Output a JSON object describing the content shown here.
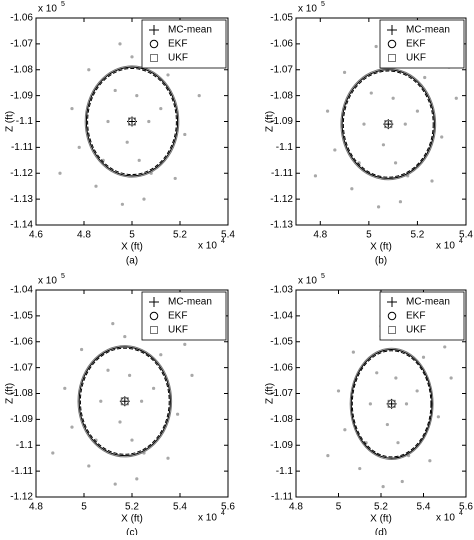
{
  "chart_data": [
    {
      "type": "scatter",
      "caption": "(a)",
      "x_label": "X (ft)",
      "y_label": "Z (ft)",
      "x_multiplier": {
        "base": "x 10",
        "power": "4"
      },
      "y_multiplier": {
        "base": "x 10",
        "power": "5"
      },
      "xlim": [
        4.6,
        5.4
      ],
      "xticks": [
        4.6,
        4.8,
        5,
        5.2,
        5.4
      ],
      "ylim": [
        -1.14,
        -1.06
      ],
      "yticks": [
        -1.06,
        -1.07,
        -1.08,
        -1.09,
        -1.1,
        -1.11,
        -1.12,
        -1.13,
        -1.14
      ],
      "legend": "upper right",
      "points": {
        "color": "#a8a8a8",
        "x": [
          4.75,
          4.82,
          4.88,
          4.95,
          5.02,
          5.08,
          5.15,
          5.22,
          5.28,
          4.9,
          5.05,
          4.98,
          5.12,
          4.85,
          5.18,
          5.0,
          4.93,
          5.1,
          4.78,
          5.25,
          5.03,
          4.7,
          5.07,
          4.96,
          5.2
        ],
        "y": [
          -1.095,
          -1.08,
          -1.115,
          -1.07,
          -1.09,
          -1.12,
          -1.082,
          -1.105,
          -1.09,
          -1.1,
          -1.13,
          -1.108,
          -1.095,
          -1.125,
          -1.122,
          -1.075,
          -1.088,
          -1.072,
          -1.11,
          -1.078,
          -1.115,
          -1.12,
          -1.1,
          -1.132,
          -1.07
        ]
      },
      "series": [
        {
          "name": "MC-mean",
          "marker": "plus",
          "color": "#000000",
          "line_style": "solid",
          "center": [
            5.0,
            -1.1
          ],
          "radii": [
            0.19,
            0.021
          ]
        },
        {
          "name": "EKF",
          "marker": "circle",
          "color": "#000000",
          "line_style": "dashed",
          "center": [
            5.0,
            -1.1
          ],
          "radii": [
            0.185,
            0.0205
          ]
        },
        {
          "name": "UKF",
          "marker": "square",
          "color": "#777777",
          "line_style": "solid",
          "center": [
            5.0,
            -1.1
          ],
          "radii": [
            0.195,
            0.0215
          ]
        }
      ]
    },
    {
      "type": "scatter",
      "caption": "(b)",
      "x_label": "X (ft)",
      "y_label": "Z (ft)",
      "x_multiplier": {
        "base": "x 10",
        "power": "4"
      },
      "y_multiplier": {
        "base": "x 10",
        "power": "5"
      },
      "xlim": [
        4.7,
        5.4
      ],
      "xticks": [
        4.8,
        5,
        5.2,
        5.4
      ],
      "ylim": [
        -1.13,
        -1.05
      ],
      "yticks": [
        -1.05,
        -1.06,
        -1.07,
        -1.08,
        -1.09,
        -1.1,
        -1.11,
        -1.12,
        -1.13
      ],
      "legend": "upper right",
      "points": {
        "color": "#a8a8a8",
        "x": [
          4.83,
          4.9,
          4.96,
          5.03,
          5.1,
          5.16,
          5.23,
          5.3,
          5.36,
          4.98,
          5.13,
          5.06,
          5.2,
          4.93,
          5.26,
          5.08,
          5.01,
          5.18,
          4.86,
          5.33,
          5.11,
          4.78,
          5.15,
          5.04,
          5.28
        ],
        "y": [
          -1.086,
          -1.071,
          -1.106,
          -1.061,
          -1.081,
          -1.111,
          -1.073,
          -1.096,
          -1.081,
          -1.091,
          -1.121,
          -1.099,
          -1.086,
          -1.116,
          -1.113,
          -1.066,
          -1.079,
          -1.063,
          -1.101,
          -1.069,
          -1.106,
          -1.111,
          -1.091,
          -1.123,
          -1.061
        ]
      },
      "series": [
        {
          "name": "MC-mean",
          "marker": "plus",
          "color": "#000000",
          "line_style": "solid",
          "center": [
            5.08,
            -1.091
          ],
          "radii": [
            0.19,
            0.021
          ]
        },
        {
          "name": "EKF",
          "marker": "circle",
          "color": "#000000",
          "line_style": "dashed",
          "center": [
            5.08,
            -1.091
          ],
          "radii": [
            0.185,
            0.0205
          ]
        },
        {
          "name": "UKF",
          "marker": "square",
          "color": "#777777",
          "line_style": "solid",
          "center": [
            5.08,
            -1.091
          ],
          "radii": [
            0.195,
            0.0215
          ]
        }
      ]
    },
    {
      "type": "scatter",
      "caption": "(c)",
      "x_label": "X (ft)",
      "y_label": "Z (ft)",
      "x_multiplier": {
        "base": "x 10",
        "power": "4"
      },
      "y_multiplier": {
        "base": "x 10",
        "power": "5"
      },
      "xlim": [
        4.8,
        5.6
      ],
      "xticks": [
        4.8,
        5,
        5.2,
        5.4,
        5.6
      ],
      "ylim": [
        -1.12,
        -1.04
      ],
      "yticks": [
        -1.04,
        -1.05,
        -1.06,
        -1.07,
        -1.08,
        -1.09,
        -1.1,
        -1.11,
        -1.12
      ],
      "legend": "upper right",
      "points": {
        "color": "#a8a8a8",
        "x": [
          4.92,
          4.99,
          5.05,
          5.12,
          5.19,
          5.25,
          5.32,
          5.39,
          5.45,
          5.07,
          5.22,
          5.15,
          5.29,
          5.02,
          5.35,
          5.17,
          5.1,
          5.27,
          4.95,
          5.42,
          5.2,
          4.87,
          5.24,
          5.13,
          5.37
        ],
        "y": [
          -1.078,
          -1.063,
          -1.098,
          -1.053,
          -1.073,
          -1.103,
          -1.065,
          -1.088,
          -1.073,
          -1.083,
          -1.113,
          -1.091,
          -1.078,
          -1.108,
          -1.105,
          -1.058,
          -1.071,
          -1.055,
          -1.093,
          -1.061,
          -1.098,
          -1.103,
          -1.083,
          -1.115,
          -1.053
        ]
      },
      "series": [
        {
          "name": "MC-mean",
          "marker": "plus",
          "color": "#000000",
          "line_style": "solid",
          "center": [
            5.17,
            -1.083
          ],
          "radii": [
            0.19,
            0.021
          ]
        },
        {
          "name": "EKF",
          "marker": "circle",
          "color": "#000000",
          "line_style": "dashed",
          "center": [
            5.17,
            -1.083
          ],
          "radii": [
            0.185,
            0.0205
          ]
        },
        {
          "name": "UKF",
          "marker": "square",
          "color": "#777777",
          "line_style": "solid",
          "center": [
            5.17,
            -1.083
          ],
          "radii": [
            0.195,
            0.0215
          ]
        }
      ]
    },
    {
      "type": "scatter",
      "caption": "(d)",
      "x_label": "X (ft)",
      "y_label": "Z (ft)",
      "x_multiplier": {
        "base": "x 10",
        "power": "4"
      },
      "y_multiplier": {
        "base": "x 10",
        "power": "5"
      },
      "xlim": [
        4.8,
        5.6
      ],
      "xticks": [
        4.8,
        5,
        5.2,
        5.4,
        5.6
      ],
      "ylim": [
        -1.11,
        -1.03
      ],
      "yticks": [
        -1.03,
        -1.04,
        -1.05,
        -1.06,
        -1.07,
        -1.08,
        -1.09,
        -1.1,
        -1.11
      ],
      "legend": "upper right",
      "points": {
        "color": "#a8a8a8",
        "x": [
          5.0,
          5.07,
          5.13,
          5.2,
          5.27,
          5.33,
          5.4,
          5.47,
          5.53,
          5.15,
          5.3,
          5.23,
          5.37,
          5.1,
          5.43,
          5.25,
          5.18,
          5.35,
          5.03,
          5.5,
          5.28,
          4.95,
          5.32,
          5.21,
          5.45
        ],
        "y": [
          -1.069,
          -1.054,
          -1.089,
          -1.044,
          -1.064,
          -1.094,
          -1.056,
          -1.079,
          -1.064,
          -1.074,
          -1.104,
          -1.082,
          -1.069,
          -1.099,
          -1.096,
          -1.049,
          -1.062,
          -1.046,
          -1.084,
          -1.052,
          -1.089,
          -1.094,
          -1.074,
          -1.106,
          -1.044
        ]
      },
      "series": [
        {
          "name": "MC-mean",
          "marker": "plus",
          "color": "#000000",
          "line_style": "solid",
          "center": [
            5.25,
            -1.074
          ],
          "radii": [
            0.19,
            0.021
          ]
        },
        {
          "name": "EKF",
          "marker": "circle",
          "color": "#000000",
          "line_style": "dashed",
          "center": [
            5.25,
            -1.074
          ],
          "radii": [
            0.185,
            0.0205
          ]
        },
        {
          "name": "UKF",
          "marker": "square",
          "color": "#777777",
          "line_style": "solid",
          "center": [
            5.25,
            -1.074
          ],
          "radii": [
            0.195,
            0.0215
          ]
        }
      ]
    }
  ]
}
